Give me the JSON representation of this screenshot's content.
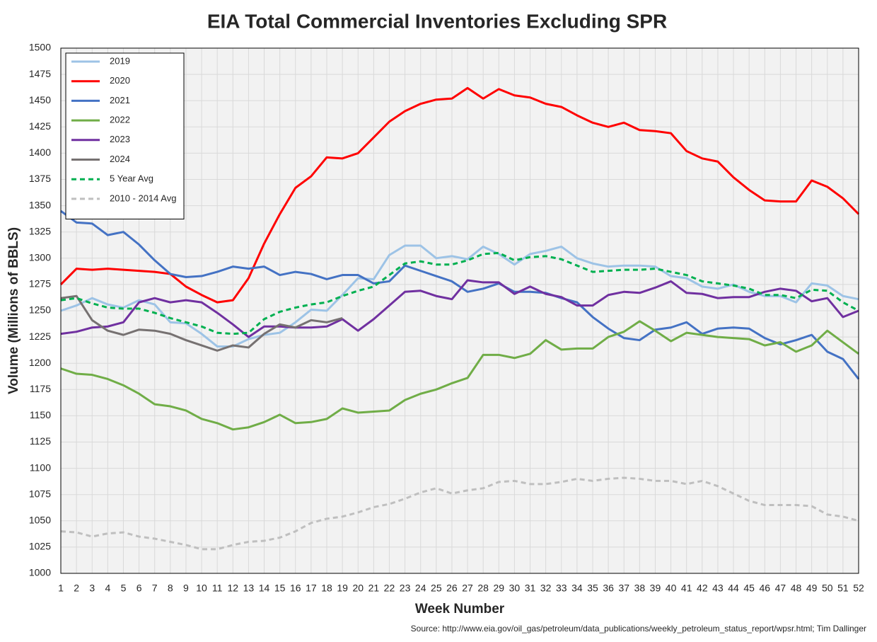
{
  "chart_data": {
    "type": "line",
    "title": "EIA Total Commercial Inventories Excluding SPR",
    "x_label": "Week Number",
    "y_label": "Volume (Millions of BBLS)",
    "source": "Source: http://www.eia.gov/oil_gas/petroleum/data_publications/weekly_petroleum_status_report/wpsr.html; Tim Dallinger",
    "x": [
      1,
      2,
      3,
      4,
      5,
      6,
      7,
      8,
      9,
      10,
      11,
      12,
      13,
      14,
      15,
      16,
      17,
      18,
      19,
      20,
      21,
      22,
      23,
      24,
      25,
      26,
      27,
      28,
      29,
      30,
      31,
      32,
      33,
      34,
      35,
      36,
      37,
      38,
      39,
      40,
      41,
      42,
      43,
      44,
      45,
      46,
      47,
      48,
      49,
      50,
      51,
      52
    ],
    "xlim": [
      1,
      52
    ],
    "xticks": [
      1,
      2,
      3,
      4,
      5,
      6,
      7,
      8,
      9,
      10,
      11,
      12,
      13,
      14,
      15,
      16,
      17,
      18,
      19,
      20,
      21,
      22,
      23,
      24,
      25,
      26,
      27,
      28,
      29,
      30,
      31,
      32,
      33,
      34,
      35,
      36,
      37,
      38,
      39,
      40,
      41,
      42,
      43,
      44,
      45,
      46,
      47,
      48,
      49,
      50,
      51,
      52
    ],
    "ylim": [
      1000,
      1500
    ],
    "yticks": [
      1000,
      1025,
      1050,
      1075,
      1100,
      1125,
      1150,
      1175,
      1200,
      1225,
      1250,
      1275,
      1300,
      1325,
      1350,
      1375,
      1400,
      1425,
      1450,
      1475,
      1500
    ],
    "grid": true,
    "legend": "top-left",
    "series": [
      {
        "name": "2019",
        "color": "#9dc3e6",
        "dashed": false,
        "values": [
          1250,
          1255,
          1262,
          1256,
          1253,
          1260,
          1256,
          1239,
          1238,
          1228,
          1216,
          1216,
          1223,
          1227,
          1229,
          1239,
          1251,
          1250,
          1265,
          1281,
          1280,
          1303,
          1312,
          1312,
          1300,
          1302,
          1299,
          1311,
          1304,
          1294,
          1304,
          1307,
          1311,
          1300,
          1295,
          1292,
          1293,
          1293,
          1292,
          1283,
          1281,
          1273,
          1271,
          1275,
          1268,
          1264,
          1264,
          1258,
          1276,
          1274,
          1264,
          1261
        ]
      },
      {
        "name": "2020",
        "color": "#ff0000",
        "dashed": false,
        "values": [
          1275,
          1290,
          1289,
          1290,
          1289,
          1288,
          1287,
          1285,
          1273,
          1265,
          1258,
          1260,
          1281,
          1314,
          1342,
          1367,
          1378,
          1396,
          1395,
          1400,
          1415,
          1430,
          1440,
          1447,
          1451,
          1452,
          1462,
          1452,
          1461,
          1455,
          1453,
          1447,
          1444,
          1436,
          1429,
          1425,
          1429,
          1422,
          1421,
          1419,
          1402,
          1395,
          1392,
          1377,
          1365,
          1355,
          1354,
          1354,
          1374,
          1368,
          1357,
          1342
        ]
      },
      {
        "name": "2021",
        "color": "#4472c4",
        "dashed": false,
        "values": [
          1345,
          1334,
          1333,
          1322,
          1325,
          1313,
          1298,
          1285,
          1282,
          1283,
          1287,
          1292,
          1290,
          1292,
          1284,
          1287,
          1285,
          1280,
          1284,
          1284,
          1276,
          1278,
          1293,
          1288,
          1283,
          1278,
          1268,
          1271,
          1276,
          1268,
          1268,
          1267,
          1262,
          1258,
          1244,
          1233,
          1224,
          1222,
          1232,
          1234,
          1239,
          1228,
          1233,
          1234,
          1233,
          1224,
          1218,
          1222,
          1227,
          1211,
          1204,
          1185
        ]
      },
      {
        "name": "2022",
        "color": "#70ad47",
        "dashed": false,
        "values": [
          1195,
          1190,
          1189,
          1185,
          1179,
          1171,
          1161,
          1159,
          1155,
          1147,
          1143,
          1137,
          1139,
          1144,
          1151,
          1143,
          1144,
          1147,
          1157,
          1153,
          1154,
          1155,
          1165,
          1171,
          1175,
          1181,
          1186,
          1208,
          1208,
          1205,
          1209,
          1222,
          1213,
          1214,
          1214,
          1225,
          1230,
          1240,
          1231,
          1221,
          1229,
          1227,
          1225,
          1224,
          1223,
          1217,
          1220,
          1211,
          1217,
          1231,
          1220,
          1209
        ]
      },
      {
        "name": "2023",
        "color": "#7030a0",
        "dashed": false,
        "values": [
          1228,
          1230,
          1234,
          1235,
          1239,
          1258,
          1262,
          1258,
          1260,
          1258,
          1248,
          1237,
          1225,
          1235,
          1235,
          1234,
          1234,
          1235,
          1242,
          1231,
          1242,
          1255,
          1268,
          1269,
          1264,
          1261,
          1279,
          1277,
          1277,
          1266,
          1273,
          1266,
          1263,
          1255,
          1255,
          1265,
          1268,
          1267,
          1272,
          1278,
          1267,
          1266,
          1262,
          1263,
          1263,
          1268,
          1271,
          1269,
          1259,
          1262,
          1244,
          1250
        ]
      },
      {
        "name": "2024",
        "color": "#767171",
        "dashed": false,
        "values": [
          1262,
          1264,
          1241,
          1231,
          1227,
          1232,
          1231,
          1228,
          1222,
          1217,
          1212,
          1217,
          1215,
          1228,
          1237,
          1234,
          1241,
          1239,
          1243,
          null,
          null,
          null,
          null,
          null,
          null,
          null,
          null,
          null,
          null,
          null,
          null,
          null,
          null,
          null,
          null,
          null,
          null,
          null,
          null,
          null,
          null,
          null,
          null,
          null,
          null,
          null,
          null,
          null,
          null,
          null,
          null,
          null
        ]
      },
      {
        "name": "5 Year Avg",
        "color": "#00b050",
        "dashed": true,
        "values": [
          1260,
          1262,
          1257,
          1253,
          1252,
          1252,
          1248,
          1243,
          1239,
          1235,
          1229,
          1228,
          1229,
          1242,
          1249,
          1253,
          1256,
          1258,
          1264,
          1269,
          1273,
          1284,
          1295,
          1297,
          1294,
          1294,
          1298,
          1304,
          1305,
          1298,
          1301,
          1302,
          1299,
          1293,
          1287,
          1288,
          1289,
          1289,
          1290,
          1287,
          1284,
          1278,
          1276,
          1274,
          1271,
          1265,
          1265,
          1262,
          1270,
          1269,
          1258,
          1250
        ]
      },
      {
        "name": "2010 - 2014 Avg",
        "color": "#bfbfbf",
        "dashed": true,
        "values": [
          1040,
          1039,
          1035,
          1038,
          1039,
          1035,
          1033,
          1030,
          1027,
          1023,
          1023,
          1027,
          1030,
          1031,
          1034,
          1040,
          1048,
          1052,
          1054,
          1058,
          1063,
          1066,
          1071,
          1077,
          1081,
          1076,
          1079,
          1081,
          1087,
          1088,
          1085,
          1085,
          1087,
          1090,
          1088,
          1090,
          1091,
          1090,
          1088,
          1088,
          1085,
          1088,
          1083,
          1076,
          1069,
          1065,
          1065,
          1065,
          1064,
          1056,
          1054,
          1050
        ]
      }
    ]
  }
}
